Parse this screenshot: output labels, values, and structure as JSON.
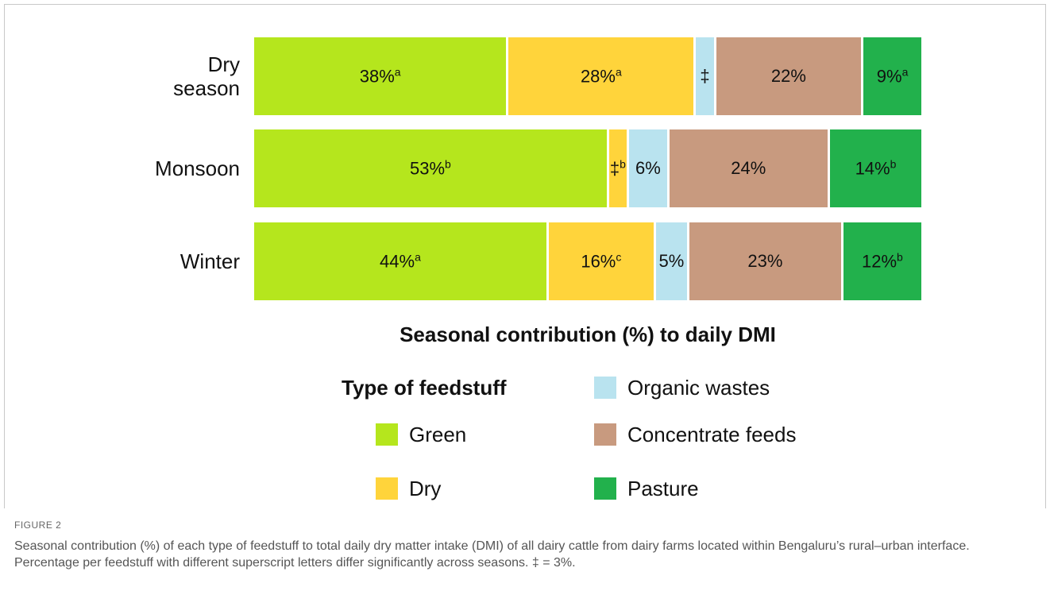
{
  "chart_data": {
    "type": "stacked_barh",
    "title": "Seasonal contribution (%) to daily DMI",
    "legend_title": "Type of feedstuff",
    "categories": [
      "Dry season",
      "Monsoon",
      "Winter"
    ],
    "xlim": [
      0,
      100
    ],
    "series": [
      {
        "name": "Green",
        "color": "#b5e61d",
        "values": [
          38,
          53,
          44
        ],
        "value_labels": [
          "38%",
          "53%",
          "44%"
        ],
        "superscripts": [
          "a",
          "b",
          "a"
        ]
      },
      {
        "name": "Dry",
        "color": "#ffd43b",
        "values": [
          28,
          3,
          16
        ],
        "value_labels": [
          "28%",
          "‡",
          "16%"
        ],
        "superscripts": [
          "a",
          "b",
          "c"
        ]
      },
      {
        "name": "Organic wastes",
        "color": "#b9e3ef",
        "values": [
          3,
          6,
          5
        ],
        "value_labels": [
          "‡",
          "6%",
          "5%"
        ],
        "superscripts": [
          null,
          null,
          null
        ]
      },
      {
        "name": "Concentrate feeds",
        "color": "#c89a7f",
        "values": [
          22,
          24,
          23
        ],
        "value_labels": [
          "22%",
          "24%",
          "23%"
        ],
        "superscripts": [
          null,
          null,
          null
        ]
      },
      {
        "name": "Pasture",
        "color": "#22b14c",
        "values": [
          9,
          14,
          12
        ],
        "value_labels": [
          "9%",
          "14%",
          "12%"
        ],
        "superscripts": [
          "a",
          "b",
          "b"
        ]
      }
    ]
  },
  "caption": {
    "label": "FIGURE 2",
    "text": "Seasonal contribution (%) of each type of feedstuff to total daily dry matter intake (DMI) of all dairy cattle from dairy farms located within Bengaluru’s rural–urban interface. Percentage per feedstuff with different superscript letters differ significantly across seasons. ‡ = 3%."
  }
}
